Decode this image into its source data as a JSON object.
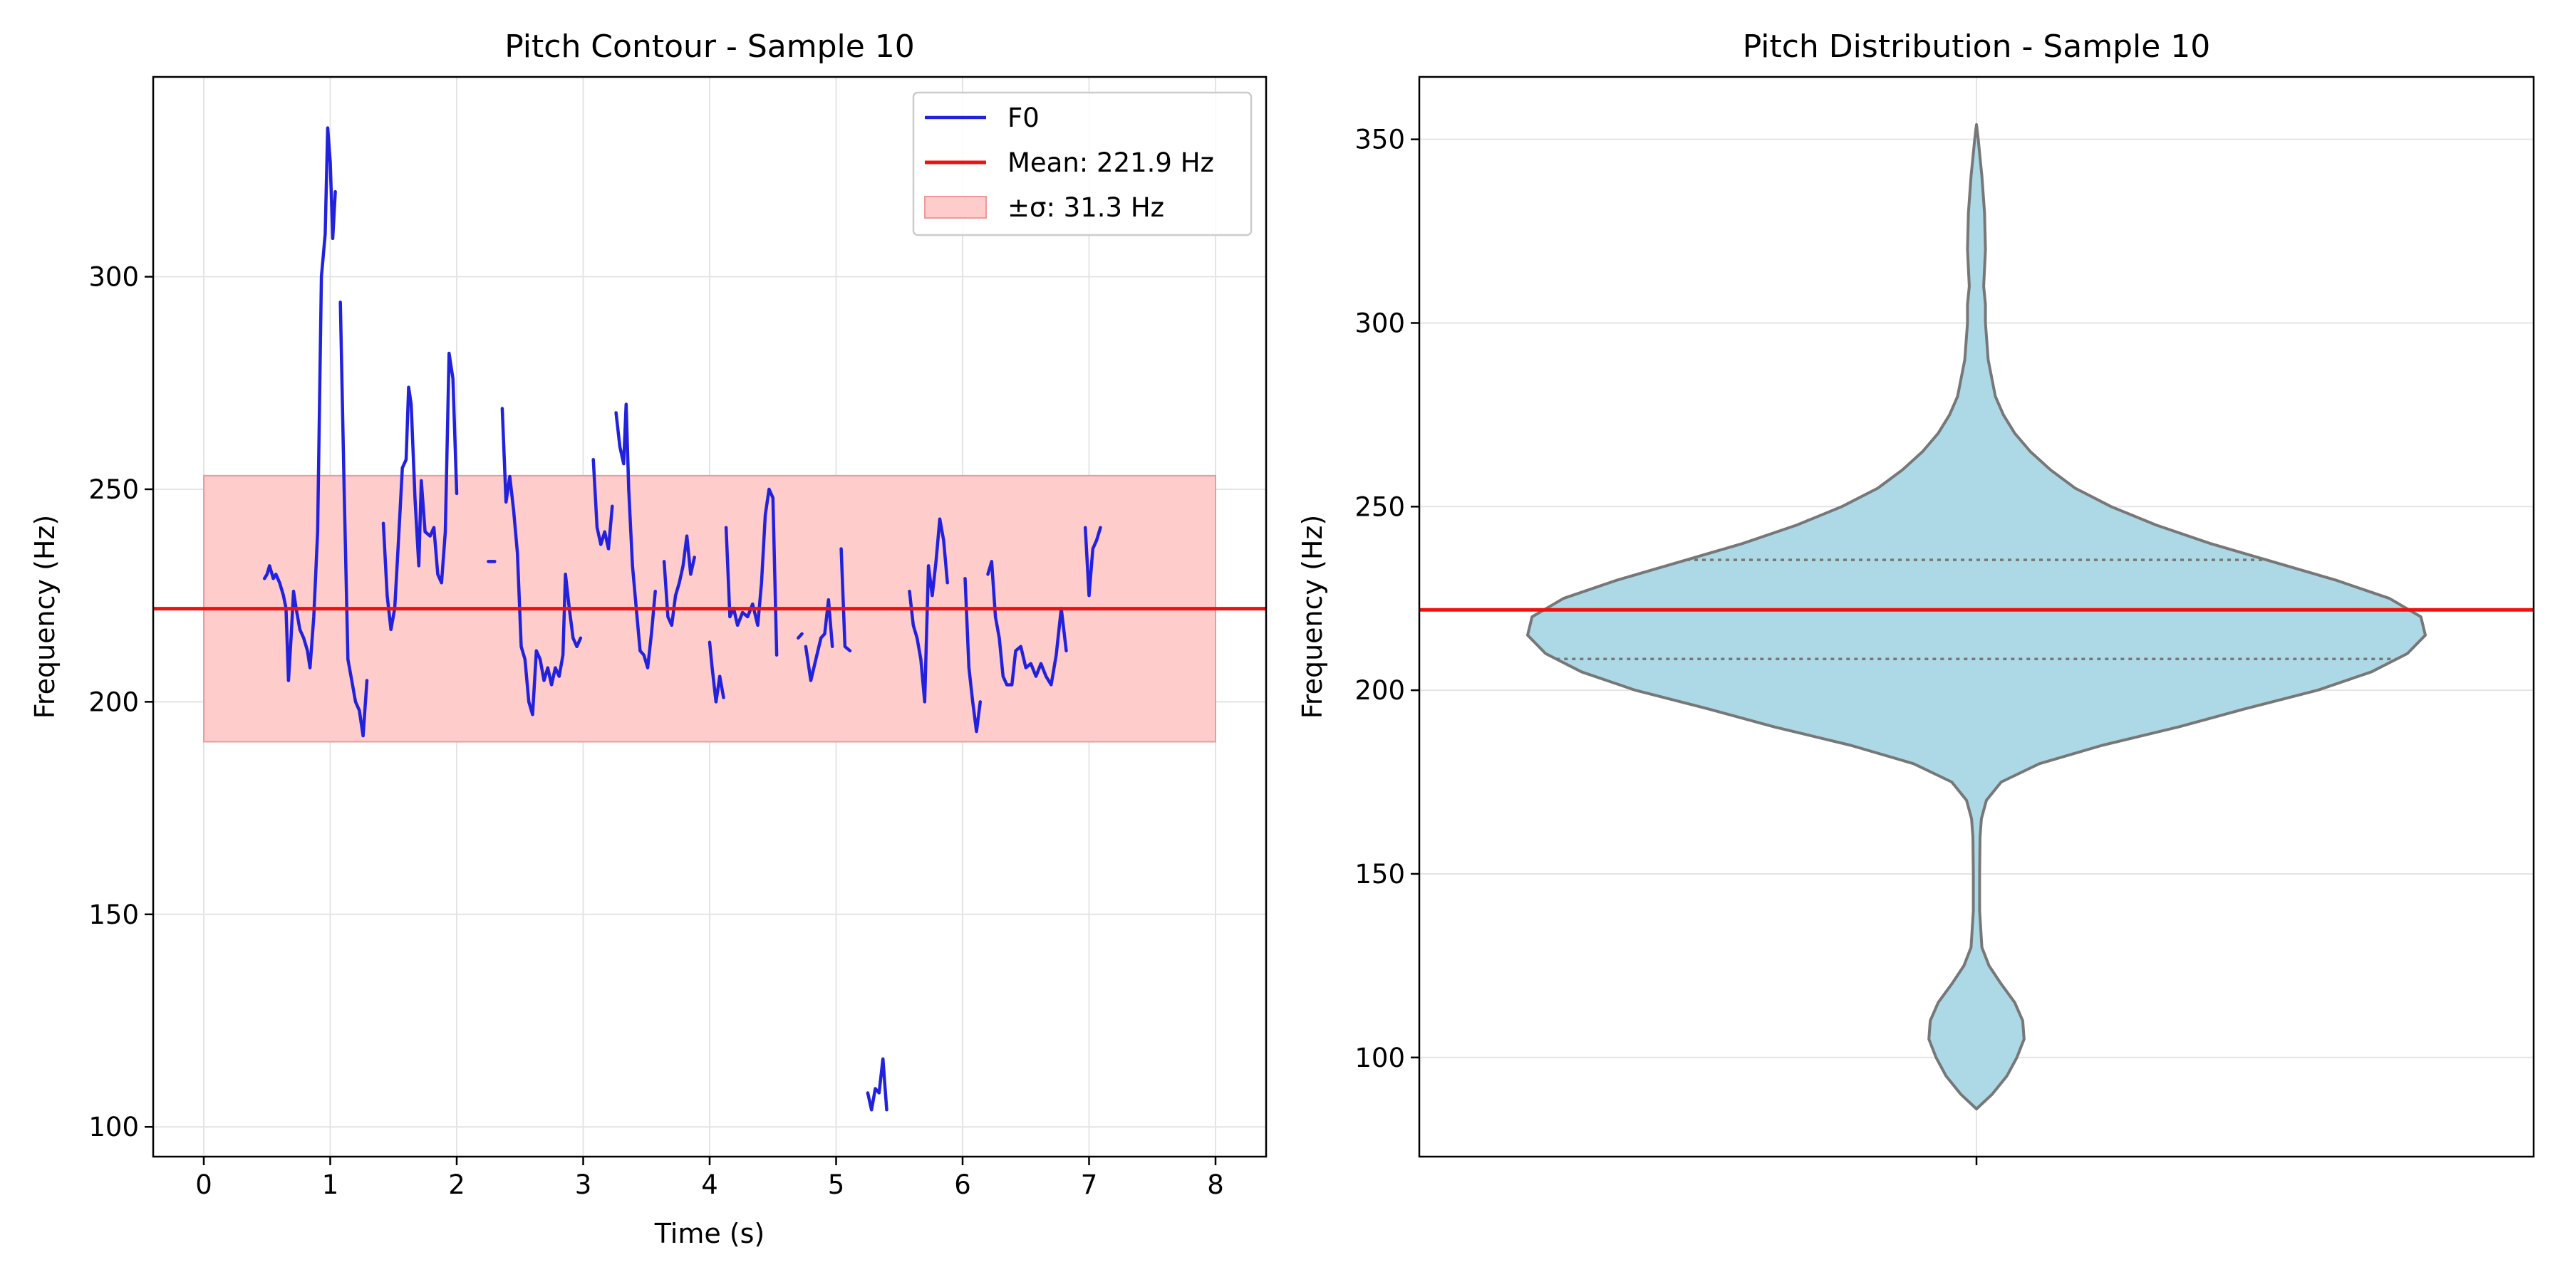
{
  "colors": {
    "f0": "#2222dd",
    "mean": "#ee1111",
    "band_fill": "#ffcccc",
    "band_edge": "#ee9999",
    "violin_fill": "#add8e6",
    "violin_edge": "#777777",
    "grid": "#e4e4e4"
  },
  "chart_data": [
    {
      "type": "line",
      "title": "Pitch Contour - Sample 10",
      "xlabel": "Time (s)",
      "ylabel": "Frequency (Hz)",
      "xlim": [
        -0.4,
        8.4
      ],
      "ylim": [
        93,
        347
      ],
      "xticks": [
        0,
        1,
        2,
        3,
        4,
        5,
        6,
        7,
        8
      ],
      "yticks": [
        100,
        150,
        200,
        250,
        300
      ],
      "grid": true,
      "legend_position": "top-right",
      "legend": [
        "F0",
        "Mean: 221.9 Hz",
        "±σ: 31.3 Hz"
      ],
      "mean": 221.9,
      "sigma": 31.3,
      "band_x": [
        0,
        8
      ],
      "series": [
        {
          "name": "F0",
          "segments": [
            [
              [
                0.48,
                229
              ],
              [
                0.5,
                230
              ],
              [
                0.52,
                232
              ],
              [
                0.55,
                229
              ],
              [
                0.57,
                230
              ],
              [
                0.6,
                228
              ],
              [
                0.63,
                225
              ],
              [
                0.65,
                222
              ],
              [
                0.67,
                205
              ],
              [
                0.69,
                215
              ],
              [
                0.71,
                226
              ],
              [
                0.73,
                222
              ],
              [
                0.76,
                217
              ],
              [
                0.79,
                215
              ],
              [
                0.82,
                212
              ],
              [
                0.84,
                208
              ],
              [
                0.87,
                220
              ],
              [
                0.9,
                240
              ],
              [
                0.93,
                300
              ],
              [
                0.96,
                310
              ],
              [
                0.98,
                335
              ],
              [
                1.0,
                327
              ],
              [
                1.02,
                309
              ],
              [
                1.04,
                320
              ]
            ],
            [
              [
                1.08,
                294
              ],
              [
                1.11,
                250
              ],
              [
                1.14,
                210
              ],
              [
                1.17,
                205
              ],
              [
                1.2,
                200
              ],
              [
                1.23,
                198
              ],
              [
                1.26,
                192
              ],
              [
                1.29,
                205
              ]
            ],
            [
              [
                1.42,
                242
              ],
              [
                1.45,
                225
              ],
              [
                1.48,
                217
              ],
              [
                1.51,
                222
              ],
              [
                1.54,
                238
              ],
              [
                1.57,
                255
              ],
              [
                1.6,
                257
              ],
              [
                1.62,
                274
              ],
              [
                1.64,
                270
              ],
              [
                1.67,
                248
              ],
              [
                1.7,
                232
              ],
              [
                1.72,
                252
              ],
              [
                1.75,
                240
              ],
              [
                1.79,
                239
              ],
              [
                1.82,
                241
              ],
              [
                1.85,
                230
              ],
              [
                1.88,
                228
              ],
              [
                1.91,
                240
              ],
              [
                1.94,
                282
              ],
              [
                1.97,
                276
              ],
              [
                2.0,
                249
              ]
            ],
            [
              [
                2.25,
                233
              ],
              [
                2.3,
                233
              ]
            ],
            [
              [
                2.36,
                269
              ],
              [
                2.39,
                247
              ],
              [
                2.42,
                253
              ],
              [
                2.45,
                245
              ],
              [
                2.48,
                235
              ],
              [
                2.51,
                213
              ],
              [
                2.54,
                210
              ],
              [
                2.57,
                200
              ],
              [
                2.6,
                197
              ],
              [
                2.63,
                212
              ],
              [
                2.66,
                210
              ],
              [
                2.69,
                205
              ],
              [
                2.72,
                208
              ],
              [
                2.75,
                204
              ],
              [
                2.78,
                208
              ],
              [
                2.81,
                206
              ],
              [
                2.84,
                211
              ],
              [
                2.86,
                230
              ],
              [
                2.89,
                222
              ],
              [
                2.92,
                215
              ],
              [
                2.95,
                213
              ],
              [
                2.98,
                215
              ]
            ],
            [
              [
                3.08,
                257
              ],
              [
                3.11,
                241
              ],
              [
                3.14,
                237
              ],
              [
                3.17,
                240
              ],
              [
                3.2,
                236
              ],
              [
                3.23,
                246
              ]
            ],
            [
              [
                3.26,
                268
              ],
              [
                3.29,
                260
              ],
              [
                3.32,
                256
              ],
              [
                3.34,
                270
              ],
              [
                3.36,
                250
              ],
              [
                3.39,
                232
              ],
              [
                3.42,
                222
              ],
              [
                3.45,
                212
              ],
              [
                3.48,
                211
              ],
              [
                3.51,
                208
              ],
              [
                3.54,
                216
              ],
              [
                3.57,
                226
              ]
            ],
            [
              [
                3.64,
                233
              ],
              [
                3.67,
                220
              ],
              [
                3.7,
                218
              ],
              [
                3.73,
                225
              ],
              [
                3.76,
                228
              ],
              [
                3.79,
                232
              ],
              [
                3.82,
                239
              ],
              [
                3.85,
                230
              ],
              [
                3.88,
                234
              ]
            ],
            [
              [
                4.0,
                214
              ],
              [
                4.02,
                208
              ],
              [
                4.05,
                200
              ],
              [
                4.08,
                206
              ],
              [
                4.11,
                201
              ]
            ],
            [
              [
                4.13,
                241
              ],
              [
                4.16,
                220
              ],
              [
                4.19,
                222
              ],
              [
                4.22,
                218
              ],
              [
                4.26,
                221
              ],
              [
                4.3,
                220
              ],
              [
                4.34,
                223
              ],
              [
                4.38,
                218
              ],
              [
                4.41,
                228
              ],
              [
                4.44,
                244
              ],
              [
                4.47,
                250
              ],
              [
                4.5,
                248
              ],
              [
                4.53,
                211
              ]
            ],
            [
              [
                4.7,
                215
              ],
              [
                4.73,
                216
              ]
            ],
            [
              [
                4.76,
                213
              ],
              [
                4.8,
                205
              ],
              [
                4.84,
                210
              ],
              [
                4.88,
                215
              ],
              [
                4.91,
                216
              ],
              [
                4.94,
                224
              ],
              [
                4.97,
                213
              ]
            ],
            [
              [
                5.04,
                236
              ],
              [
                5.07,
                213
              ],
              [
                5.11,
                212
              ]
            ],
            [
              [
                5.25,
                108
              ],
              [
                5.28,
                104
              ],
              [
                5.31,
                109
              ],
              [
                5.34,
                108
              ],
              [
                5.37,
                116
              ],
              [
                5.4,
                104
              ]
            ],
            [
              [
                5.58,
                226
              ],
              [
                5.61,
                218
              ],
              [
                5.64,
                215
              ],
              [
                5.67,
                210
              ],
              [
                5.7,
                200
              ],
              [
                5.73,
                232
              ],
              [
                5.76,
                225
              ],
              [
                5.79,
                233
              ],
              [
                5.82,
                243
              ],
              [
                5.85,
                238
              ],
              [
                5.88,
                228
              ]
            ],
            [
              [
                6.02,
                229
              ],
              [
                6.05,
                208
              ],
              [
                6.08,
                200
              ],
              [
                6.11,
                193
              ],
              [
                6.14,
                200
              ]
            ],
            [
              [
                6.2,
                230
              ],
              [
                6.23,
                233
              ],
              [
                6.26,
                220
              ],
              [
                6.29,
                215
              ],
              [
                6.32,
                206
              ],
              [
                6.35,
                204
              ],
              [
                6.39,
                204
              ],
              [
                6.42,
                212
              ],
              [
                6.46,
                213
              ],
              [
                6.5,
                208
              ],
              [
                6.54,
                209
              ],
              [
                6.58,
                206
              ],
              [
                6.62,
                209
              ],
              [
                6.66,
                206
              ],
              [
                6.7,
                204
              ],
              [
                6.74,
                211
              ],
              [
                6.78,
                222
              ],
              [
                6.82,
                212
              ]
            ],
            [
              [
                6.97,
                241
              ],
              [
                7.0,
                225
              ],
              [
                7.03,
                236
              ],
              [
                7.06,
                238
              ],
              [
                7.09,
                241
              ]
            ]
          ]
        }
      ]
    },
    {
      "type": "violin",
      "title": "Pitch Distribution - Sample 10",
      "ylabel": "Frequency (Hz)",
      "ylim": [
        73,
        367
      ],
      "yticks": [
        100,
        150,
        200,
        250,
        300,
        350
      ],
      "grid": true,
      "mean": 221.9,
      "quartiles": [
        208.5,
        222,
        235.5
      ],
      "range": [
        86,
        354
      ],
      "density_profile": [
        [
          86,
          0.0
        ],
        [
          90,
          0.035
        ],
        [
          95,
          0.068
        ],
        [
          100,
          0.09
        ],
        [
          105,
          0.106
        ],
        [
          110,
          0.103
        ],
        [
          115,
          0.085
        ],
        [
          120,
          0.055
        ],
        [
          125,
          0.028
        ],
        [
          130,
          0.012
        ],
        [
          140,
          0.007
        ],
        [
          150,
          0.007
        ],
        [
          160,
          0.008
        ],
        [
          165,
          0.011
        ],
        [
          170,
          0.022
        ],
        [
          175,
          0.055
        ],
        [
          180,
          0.14
        ],
        [
          185,
          0.28
        ],
        [
          190,
          0.45
        ],
        [
          195,
          0.6
        ],
        [
          200,
          0.76
        ],
        [
          205,
          0.88
        ],
        [
          210,
          0.96
        ],
        [
          215,
          1.0
        ],
        [
          220,
          0.99
        ],
        [
          225,
          0.92
        ],
        [
          230,
          0.8
        ],
        [
          235,
          0.66
        ],
        [
          240,
          0.52
        ],
        [
          245,
          0.4
        ],
        [
          250,
          0.3
        ],
        [
          255,
          0.22
        ],
        [
          260,
          0.165
        ],
        [
          265,
          0.12
        ],
        [
          270,
          0.085
        ],
        [
          275,
          0.06
        ],
        [
          280,
          0.042
        ],
        [
          290,
          0.026
        ],
        [
          300,
          0.02
        ],
        [
          305,
          0.02
        ],
        [
          310,
          0.016
        ],
        [
          320,
          0.02
        ],
        [
          330,
          0.018
        ],
        [
          340,
          0.012
        ],
        [
          345,
          0.008
        ],
        [
          350,
          0.004
        ],
        [
          354,
          0.0
        ]
      ]
    }
  ]
}
